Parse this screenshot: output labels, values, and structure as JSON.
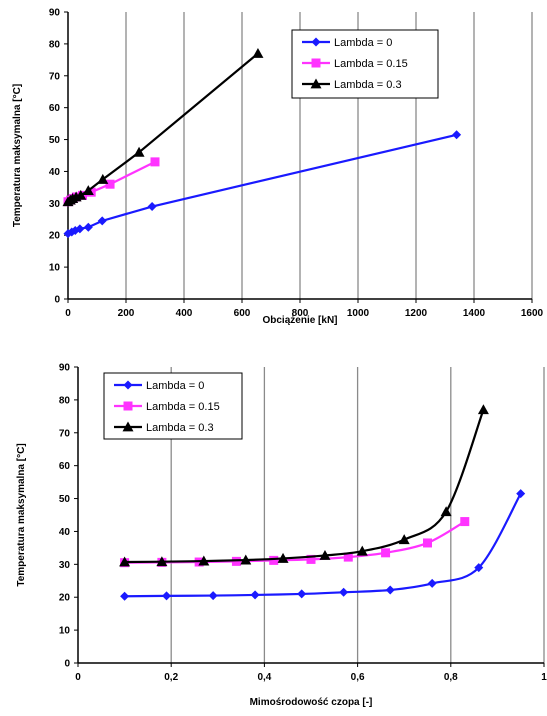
{
  "chart_data": [
    {
      "type": "line",
      "xlabel": "Obciążenie [kN]",
      "ylabel": "Temperatura maksymalna [°C]",
      "xlim": [
        0,
        1600
      ],
      "ylim": [
        0,
        90
      ],
      "xticks": [
        "0",
        "200",
        "400",
        "600",
        "800",
        "1000",
        "1200",
        "1400",
        "1600"
      ],
      "yticks": [
        "0",
        "10",
        "20",
        "30",
        "40",
        "50",
        "60",
        "70",
        "80",
        "90"
      ],
      "grid": "vertical",
      "legend": "top-right",
      "series": [
        {
          "name": "Lambda = 0",
          "color": "#1a1aff",
          "marker": "diamond",
          "x": [
            0,
            13,
            25,
            41,
            70,
            118,
            290,
            1340
          ],
          "y": [
            20.5,
            21,
            21.5,
            22,
            22.5,
            24.5,
            29,
            51.5
          ]
        },
        {
          "name": "Lambda = 0.15",
          "color": "#ff33ff",
          "marker": "square",
          "x": [
            0,
            9,
            18,
            29,
            50,
            80,
            145,
            300
          ],
          "y": [
            30.5,
            31,
            31.5,
            32,
            32.5,
            33.5,
            36,
            43
          ]
        },
        {
          "name": "Lambda = 0.3",
          "color": "#000000",
          "marker": "triangle",
          "x": [
            0,
            8,
            16,
            28,
            44,
            70,
            120,
            245,
            655
          ],
          "y": [
            30.5,
            31,
            31.5,
            32,
            32.5,
            34,
            37.5,
            46,
            77
          ]
        }
      ]
    },
    {
      "type": "line",
      "xlabel": "Mimośrodowość czopa [-]",
      "ylabel": "Temperatura maksymalna [°C]",
      "xlim": [
        0,
        1
      ],
      "ylim": [
        0,
        90
      ],
      "xticks": [
        "0",
        "0,2",
        "0,4",
        "0,6",
        "0,8",
        "1"
      ],
      "yticks": [
        "0",
        "10",
        "20",
        "30",
        "40",
        "50",
        "60",
        "70",
        "80",
        "90"
      ],
      "grid": "vertical",
      "legend": "top-left",
      "series": [
        {
          "name": "Lambda = 0",
          "color": "#1a1aff",
          "marker": "diamond",
          "x": [
            0.1,
            0.19,
            0.29,
            0.38,
            0.48,
            0.57,
            0.67,
            0.76,
            0.86,
            0.95
          ],
          "y": [
            20.3,
            20.4,
            20.5,
            20.7,
            21,
            21.5,
            22.2,
            24.2,
            29,
            51.5
          ]
        },
        {
          "name": "Lambda = 0.15",
          "color": "#ff33ff",
          "marker": "square",
          "x": [
            0.1,
            0.18,
            0.26,
            0.34,
            0.42,
            0.5,
            0.58,
            0.66,
            0.75,
            0.83
          ],
          "y": [
            30.5,
            30.6,
            30.7,
            30.9,
            31.2,
            31.5,
            32.2,
            33.5,
            36.5,
            43
          ]
        },
        {
          "name": "Lambda = 0.3",
          "color": "#000000",
          "marker": "triangle",
          "x": [
            0.1,
            0.18,
            0.27,
            0.36,
            0.44,
            0.53,
            0.61,
            0.7,
            0.79,
            0.87
          ],
          "y": [
            30.7,
            30.8,
            31,
            31.3,
            31.8,
            32.7,
            34,
            37.5,
            46,
            77
          ]
        }
      ]
    }
  ]
}
